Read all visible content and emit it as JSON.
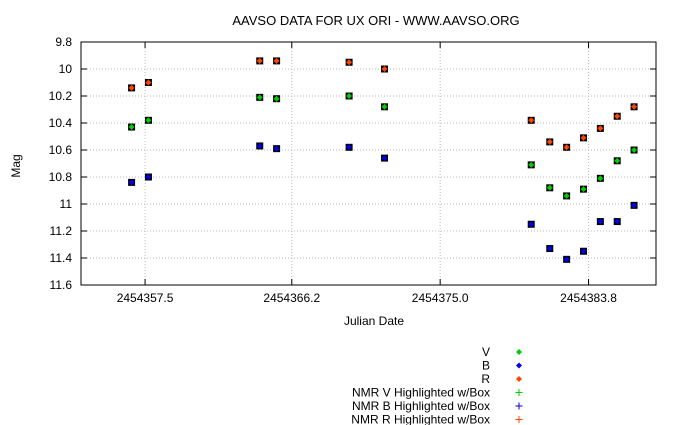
{
  "chart_data": {
    "type": "scatter",
    "title": "AAVSO DATA FOR UX ORI - WWW.AAVSO.ORG",
    "xlabel": "Julian Date",
    "ylabel": "Mag",
    "x_ticks": [
      "2454357.5",
      "2454366.2",
      "2454375.0",
      "2454383.8"
    ],
    "y_ticks": [
      "9.8",
      "10",
      "10.2",
      "10.4",
      "10.6",
      "10.8",
      "11",
      "11.2",
      "11.4",
      "11.6"
    ],
    "xlim": [
      2454353.7,
      2454387.8
    ],
    "ylim": [
      9.8,
      11.6
    ],
    "y_inverted": true,
    "grid": true,
    "legend_position": "bottom-right",
    "series": [
      {
        "name": "V",
        "color": "#00cc00",
        "marker": "diamond",
        "x": [
          2454356.7,
          2454357.7,
          2454364.3,
          2454365.3,
          2454369.6,
          2454371.7,
          2454380.4,
          2454381.5,
          2454382.5,
          2454383.5,
          2454384.5,
          2454385.5,
          2454386.5
        ],
        "y": [
          10.43,
          10.38,
          10.21,
          10.22,
          10.2,
          10.28,
          10.71,
          10.88,
          10.94,
          10.89,
          10.81,
          10.68,
          10.6
        ]
      },
      {
        "name": "B",
        "color": "#0000ee",
        "marker": "diamond",
        "x": [
          2454356.7,
          2454357.7,
          2454364.3,
          2454365.3,
          2454369.6,
          2454371.7,
          2454380.4,
          2454381.5,
          2454382.5,
          2454383.5,
          2454384.5,
          2454385.5,
          2454386.5
        ],
        "y": [
          10.84,
          10.8,
          10.57,
          10.59,
          10.58,
          10.66,
          11.15,
          11.33,
          11.41,
          11.35,
          11.13,
          11.13,
          11.01
        ]
      },
      {
        "name": "R",
        "color": "#ff4400",
        "marker": "diamond",
        "x": [
          2454356.7,
          2454357.7,
          2454364.3,
          2454365.3,
          2454369.6,
          2454371.7,
          2454380.4,
          2454381.5,
          2454382.5,
          2454383.5,
          2454384.5,
          2454385.5,
          2454386.5
        ],
        "y": [
          10.14,
          10.1,
          9.94,
          9.94,
          9.95,
          10.0,
          10.38,
          10.54,
          10.58,
          10.51,
          10.44,
          10.35,
          10.28
        ]
      }
    ],
    "legend": [
      {
        "label": "V",
        "color": "#00cc00",
        "symbol": "diamond"
      },
      {
        "label": "B",
        "color": "#0000ee",
        "symbol": "diamond"
      },
      {
        "label": "R",
        "color": "#ff4400",
        "symbol": "diamond"
      },
      {
        "label": "NMR V Highlighted w/Box",
        "color": "#00cc00",
        "symbol": "plus"
      },
      {
        "label": "NMR B Highlighted w/Box",
        "color": "#0000ee",
        "symbol": "plus"
      },
      {
        "label": "NMR R Highlighted w/Box",
        "color": "#ff4400",
        "symbol": "plus"
      }
    ]
  }
}
